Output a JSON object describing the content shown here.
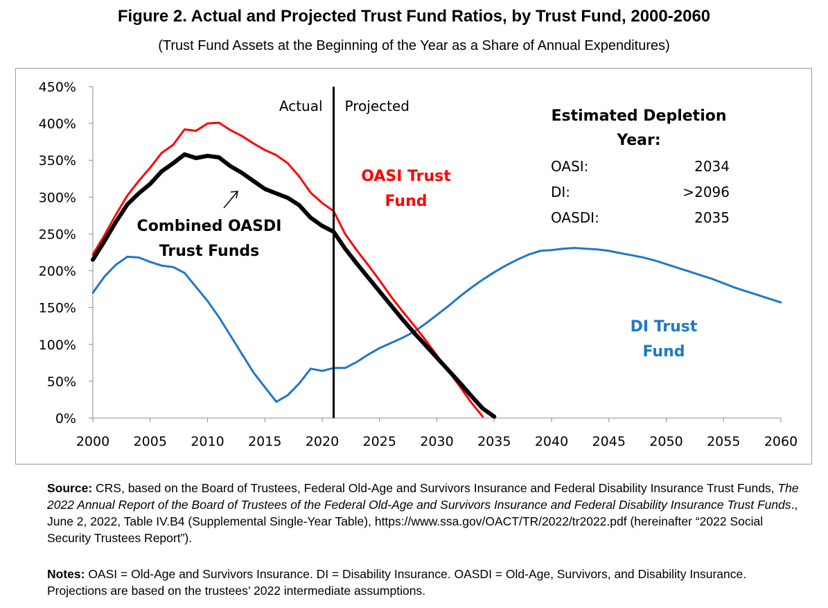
{
  "figure": {
    "title": "Figure 2. Actual and Projected Trust Fund Ratios, by Trust Fund, 2000-2060",
    "subtitle": "(Trust Fund Assets at the Beginning of the Year as a Share of Annual Expenditures)"
  },
  "chart_data": {
    "type": "line",
    "title": "Figure 2. Actual and Projected Trust Fund Ratios, by Trust Fund, 2000-2060",
    "xlabel": "",
    "ylabel": "",
    "xlim": [
      2000,
      2060
    ],
    "ylim": [
      0,
      450
    ],
    "x_ticks": [
      "2000",
      "2005",
      "2010",
      "2015",
      "2020",
      "2025",
      "2030",
      "2035",
      "2040",
      "2045",
      "2050",
      "2055",
      "2060"
    ],
    "y_ticks": [
      "0%",
      "50%",
      "100%",
      "150%",
      "200%",
      "250%",
      "300%",
      "350%",
      "400%",
      "450%"
    ],
    "grid": false,
    "divider": {
      "year": 2021,
      "left_label": "Actual",
      "right_label": "Projected"
    },
    "series": [
      {
        "name": "OASI Trust Fund",
        "label_lines": [
          "OASI Trust",
          "Fund"
        ],
        "color": "#ff0000",
        "x": [
          2000,
          2001,
          2002,
          2003,
          2004,
          2005,
          2006,
          2007,
          2008,
          2009,
          2010,
          2011,
          2012,
          2013,
          2014,
          2015,
          2016,
          2017,
          2018,
          2019,
          2020,
          2021,
          2022,
          2023,
          2024,
          2025,
          2026,
          2027,
          2028,
          2029,
          2030,
          2031,
          2032,
          2033,
          2034
        ],
        "values": [
          222,
          248,
          276,
          302,
          322,
          340,
          360,
          371,
          392,
          390,
          400,
          401,
          391,
          383,
          373,
          364,
          357,
          346,
          328,
          306,
          292,
          281,
          250,
          228,
          208,
          187,
          165,
          145,
          126,
          106,
          85,
          64,
          43,
          21,
          2
        ]
      },
      {
        "name": "Combined OASDI Trust Funds",
        "label_lines": [
          "Combined OASDI",
          "Trust Funds"
        ],
        "color": "#000000",
        "x": [
          2000,
          2001,
          2002,
          2003,
          2004,
          2005,
          2006,
          2007,
          2008,
          2009,
          2010,
          2011,
          2012,
          2013,
          2014,
          2015,
          2016,
          2017,
          2018,
          2019,
          2020,
          2021,
          2022,
          2023,
          2024,
          2025,
          2026,
          2027,
          2028,
          2029,
          2030,
          2031,
          2032,
          2033,
          2034,
          2035
        ],
        "values": [
          215,
          240,
          266,
          290,
          305,
          318,
          335,
          346,
          358,
          353,
          356,
          354,
          342,
          333,
          322,
          311,
          305,
          299,
          289,
          272,
          261,
          253,
          230,
          210,
          191,
          172,
          153,
          134,
          116,
          99,
          82,
          65,
          48,
          30,
          13,
          2
        ]
      },
      {
        "name": "DI Trust Fund",
        "label_lines": [
          "DI Trust",
          "Fund"
        ],
        "color": "#1f77c9",
        "x": [
          2000,
          2001,
          2002,
          2003,
          2004,
          2005,
          2006,
          2007,
          2008,
          2009,
          2010,
          2011,
          2012,
          2013,
          2014,
          2015,
          2016,
          2017,
          2018,
          2019,
          2020,
          2021,
          2022,
          2023,
          2024,
          2025,
          2026,
          2027,
          2028,
          2029,
          2030,
          2031,
          2032,
          2033,
          2034,
          2035,
          2036,
          2037,
          2038,
          2039,
          2040,
          2041,
          2042,
          2043,
          2044,
          2045,
          2046,
          2047,
          2048,
          2049,
          2050,
          2051,
          2052,
          2053,
          2054,
          2055,
          2056,
          2057,
          2058,
          2059,
          2060
        ],
        "values": [
          170,
          192,
          208,
          219,
          218,
          212,
          207,
          205,
          197,
          178,
          159,
          137,
          112,
          87,
          62,
          42,
          22,
          31,
          47,
          67,
          64,
          68,
          68,
          76,
          86,
          95,
          102,
          109,
          117,
          128,
          140,
          152,
          165,
          177,
          188,
          198,
          207,
          215,
          222,
          227,
          228,
          230,
          231,
          230,
          229,
          227,
          224,
          221,
          218,
          214,
          209,
          204,
          199,
          194,
          189,
          183,
          177,
          172,
          167,
          162,
          157
        ]
      }
    ],
    "annotations": [
      {
        "text_lines": [
          "Estimated Depletion",
          "Year:"
        ]
      }
    ],
    "depletion_table": [
      {
        "fund": "OASI:",
        "year": "2034"
      },
      {
        "fund": "DI:",
        "year": ">2096"
      },
      {
        "fund": "OASDI:",
        "year": "2035"
      }
    ]
  },
  "source": {
    "label": "Source:",
    "text_before_title": " CRS, based on the Board of Trustees, Federal Old-Age and Survivors Insurance and Federal Disability Insurance Trust Funds, ",
    "italic_title": "The 2022 Annual Report of the Board of Trustees of the Federal Old-Age and Survivors Insurance and Federal Disability Insurance Trust Funds",
    "text_after_title": "., June 2, 2022, Table IV.B4 (Supplemental Single-Year Table), https://www.ssa.gov/OACT/TR/2022/tr2022.pdf (hereinafter “2022 Social Security Trustees Report”)."
  },
  "notes": {
    "label": "Notes:",
    "text": " OASI = Old-Age and Survivors Insurance. DI = Disability Insurance. OASDI = Old-Age, Survivors, and Disability Insurance. Projections are based on the trustees’ 2022 intermediate assumptions."
  }
}
